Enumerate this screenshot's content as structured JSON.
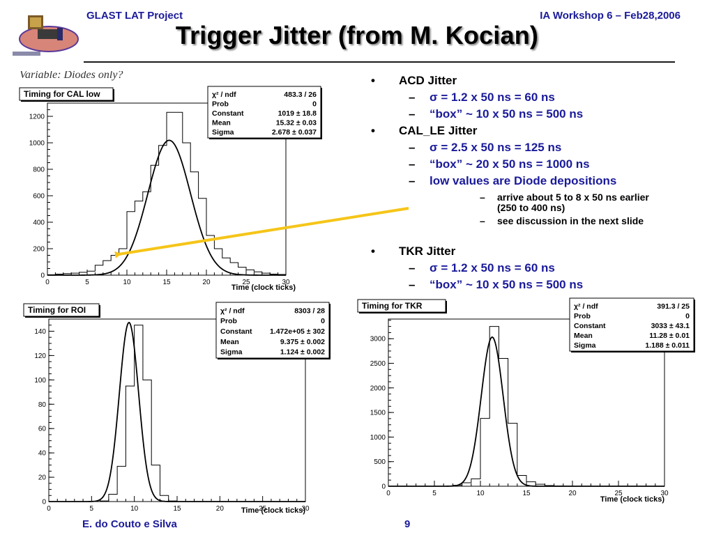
{
  "header": {
    "left": "GLAST LAT Project",
    "right": "IA Workshop 6 –  Feb28,2006",
    "title": "Trigger Jitter (from M. Kocian)"
  },
  "footer": {
    "author": "E. do Couto e Silva",
    "page": "9"
  },
  "partial_text": "Variable: Diodes only?",
  "bullets": [
    {
      "level": 1,
      "marker": "•",
      "text": "ACD Jitter"
    },
    {
      "level": 2,
      "marker": "–",
      "text": "σ = 1.2 x 50 ns = 60 ns"
    },
    {
      "level": 2,
      "marker": "–",
      "text": "“box” ~ 10 x 50 ns = 500 ns"
    },
    {
      "level": 1,
      "marker": "•",
      "text": "CAL_LE Jitter"
    },
    {
      "level": 2,
      "marker": "–",
      "text": "σ = 2.5 x 50 ns = 125 ns"
    },
    {
      "level": 2,
      "marker": "–",
      "text": "“box” ~ 20 x 50 ns = 1000 ns"
    },
    {
      "level": 2,
      "marker": "–",
      "text": "low values are Diode depositions"
    },
    {
      "level": 3,
      "marker": "–",
      "text": "arrive about 5 to 8 x 50 ns earlier (250 to 400 ns)"
    },
    {
      "level": 3,
      "marker": "–",
      "text": "see discussion in the next slide"
    },
    {
      "level": 1,
      "marker": "•",
      "text": "TKR Jitter"
    },
    {
      "level": 2,
      "marker": "–",
      "text": "σ = 1.2 x 50 ns = 60 ns"
    },
    {
      "level": 2,
      "marker": "–",
      "text": "“box” ~ 10 x 50 ns = 500 ns"
    }
  ],
  "colors": {
    "accent": "#1a1a9a",
    "arrow": "#f5c518"
  },
  "chart_data": [
    {
      "type": "histogram",
      "title": "Timing for CAL low",
      "xlabel": "Time (clock ticks)",
      "ylabel": "",
      "xlim": [
        0,
        30
      ],
      "ylim": [
        0,
        1300
      ],
      "xticks": [
        0,
        5,
        10,
        15,
        20,
        25,
        30
      ],
      "yticks": [
        0,
        200,
        400,
        600,
        800,
        1000,
        1200
      ],
      "x_edges": [
        0,
        1,
        2,
        3,
        4,
        5,
        6,
        7,
        8,
        9,
        10,
        11,
        12,
        13,
        14,
        15,
        16,
        17,
        18,
        19,
        20,
        21,
        22,
        23,
        24,
        25,
        26,
        27,
        28,
        29,
        30
      ],
      "counts": [
        3,
        8,
        12,
        15,
        22,
        30,
        75,
        110,
        150,
        200,
        480,
        560,
        630,
        830,
        980,
        1230,
        1230,
        1000,
        780,
        580,
        300,
        200,
        130,
        95,
        60,
        40,
        25,
        15,
        8,
        5
      ],
      "fit": {
        "model": "gaussian",
        "constant": 1019,
        "mean": 15.32,
        "sigma": 2.678
      },
      "stats": [
        {
          "label": "χ² / ndf",
          "value": "483.3 / 26"
        },
        {
          "label": "Prob",
          "value": "0"
        },
        {
          "label": "Constant",
          "value": "1019 ± 18.8"
        },
        {
          "label": "Mean",
          "value": "15.32 ± 0.03"
        },
        {
          "label": "Sigma",
          "value": "2.678 ± 0.037"
        }
      ],
      "grid": false,
      "legend": "top-right"
    },
    {
      "type": "histogram",
      "title": "Timing for ROI",
      "xlabel": "Time (clock ticks)",
      "ylabel": "",
      "multiplier": "×10³",
      "xlim": [
        0,
        30
      ],
      "ylim": [
        0,
        150
      ],
      "xticks": [
        0,
        5,
        10,
        15,
        20,
        25,
        30
      ],
      "yticks": [
        0,
        20,
        40,
        60,
        80,
        100,
        120,
        140
      ],
      "x_edges": [
        0,
        1,
        2,
        3,
        4,
        5,
        6,
        7,
        8,
        9,
        10,
        11,
        12,
        13,
        14,
        15,
        16,
        17,
        18,
        19,
        20,
        21,
        22,
        23,
        24,
        25,
        26,
        27,
        28,
        29,
        30
      ],
      "counts": [
        0,
        0,
        0,
        0,
        0,
        0,
        0.5,
        6,
        29,
        95,
        145,
        100,
        30,
        5,
        0.5,
        0,
        0,
        0,
        0,
        0,
        0,
        0,
        0,
        0,
        0,
        0,
        0,
        0,
        0,
        0
      ],
      "fit": {
        "model": "gaussian",
        "constant": 147.2,
        "mean": 9.375,
        "sigma": 1.124
      },
      "stats": [
        {
          "label": "χ² / ndf",
          "value": "8303 / 28"
        },
        {
          "label": "Prob",
          "value": "0"
        },
        {
          "label": "Constant",
          "value": "1.472e+05 ± 302"
        },
        {
          "label": "Mean",
          "value": "9.375 ± 0.002"
        },
        {
          "label": "Sigma",
          "value": "1.124 ± 0.002"
        }
      ],
      "grid": false,
      "legend": "top-right"
    },
    {
      "type": "histogram",
      "title": "Timing for TKR",
      "xlabel": "Time (clock ticks)",
      "ylabel": "",
      "xlim": [
        0,
        30
      ],
      "ylim": [
        0,
        3400
      ],
      "xticks": [
        0,
        5,
        10,
        15,
        20,
        25,
        30
      ],
      "yticks": [
        0,
        500,
        1000,
        1500,
        2000,
        2500,
        3000
      ],
      "x_edges": [
        0,
        1,
        2,
        3,
        4,
        5,
        6,
        7,
        8,
        9,
        10,
        11,
        12,
        13,
        14,
        15,
        16,
        17,
        18,
        19,
        20,
        21,
        22,
        23,
        24,
        25,
        26,
        27,
        28,
        29,
        30
      ],
      "counts": [
        0,
        0,
        0,
        0,
        0,
        0,
        0,
        20,
        70,
        150,
        1380,
        3250,
        2600,
        1280,
        220,
        90,
        40,
        15,
        5,
        2,
        0,
        0,
        0,
        0,
        0,
        0,
        0,
        0,
        0,
        0
      ],
      "fit": {
        "model": "gaussian",
        "constant": 3033,
        "mean": 11.28,
        "sigma": 1.188
      },
      "stats": [
        {
          "label": "χ² / ndf",
          "value": "391.3 / 25"
        },
        {
          "label": "Prob",
          "value": "0"
        },
        {
          "label": "Constant",
          "value": "3033 ± 43.1"
        },
        {
          "label": "Mean",
          "value": "11.28 ± 0.01"
        },
        {
          "label": "Sigma",
          "value": "1.188 ± 0.011"
        }
      ],
      "grid": false,
      "legend": "top-right"
    }
  ]
}
